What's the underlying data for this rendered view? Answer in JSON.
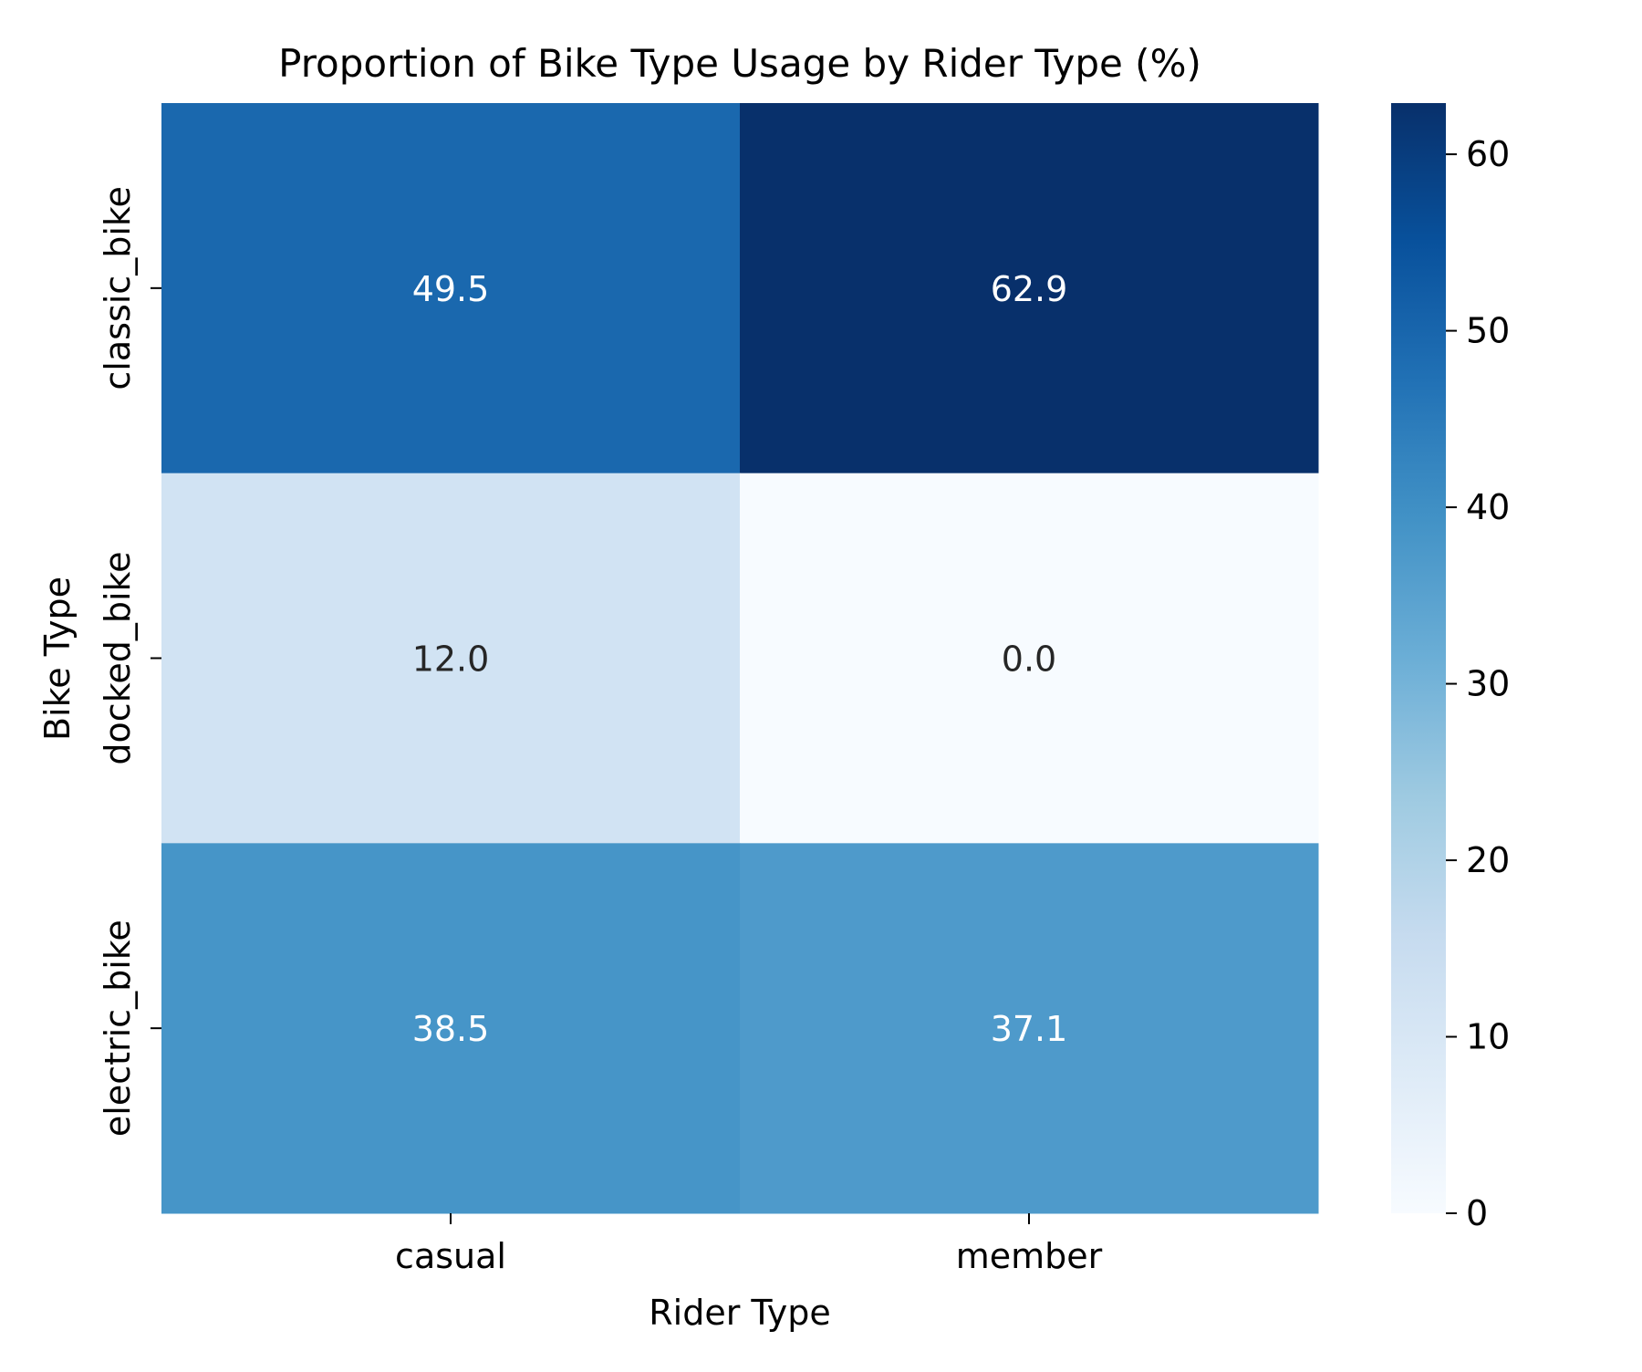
{
  "chart_data": {
    "type": "heatmap",
    "title": "Proportion of Bike Type Usage by Rider Type (%)",
    "xlabel": "Rider Type",
    "ylabel": "Bike Type",
    "x_categories": [
      "casual",
      "member"
    ],
    "y_categories": [
      "classic_bike",
      "docked_bike",
      "electric_bike"
    ],
    "values": [
      [
        49.5,
        62.9
      ],
      [
        12.0,
        0.0
      ],
      [
        38.5,
        37.1
      ]
    ],
    "cell_labels": [
      [
        "49.5",
        "62.9"
      ],
      [
        "12.0",
        "0.0"
      ],
      [
        "38.5",
        "37.1"
      ]
    ],
    "colormap": "Blues",
    "vmin": 0,
    "vmax": 62.9,
    "colorbar_ticks": [
      "0",
      "10",
      "20",
      "30",
      "40",
      "50",
      "60"
    ],
    "colors": {
      "text_dark": "#262626",
      "text_light": "#ffffff",
      "axis": "#000000"
    }
  }
}
